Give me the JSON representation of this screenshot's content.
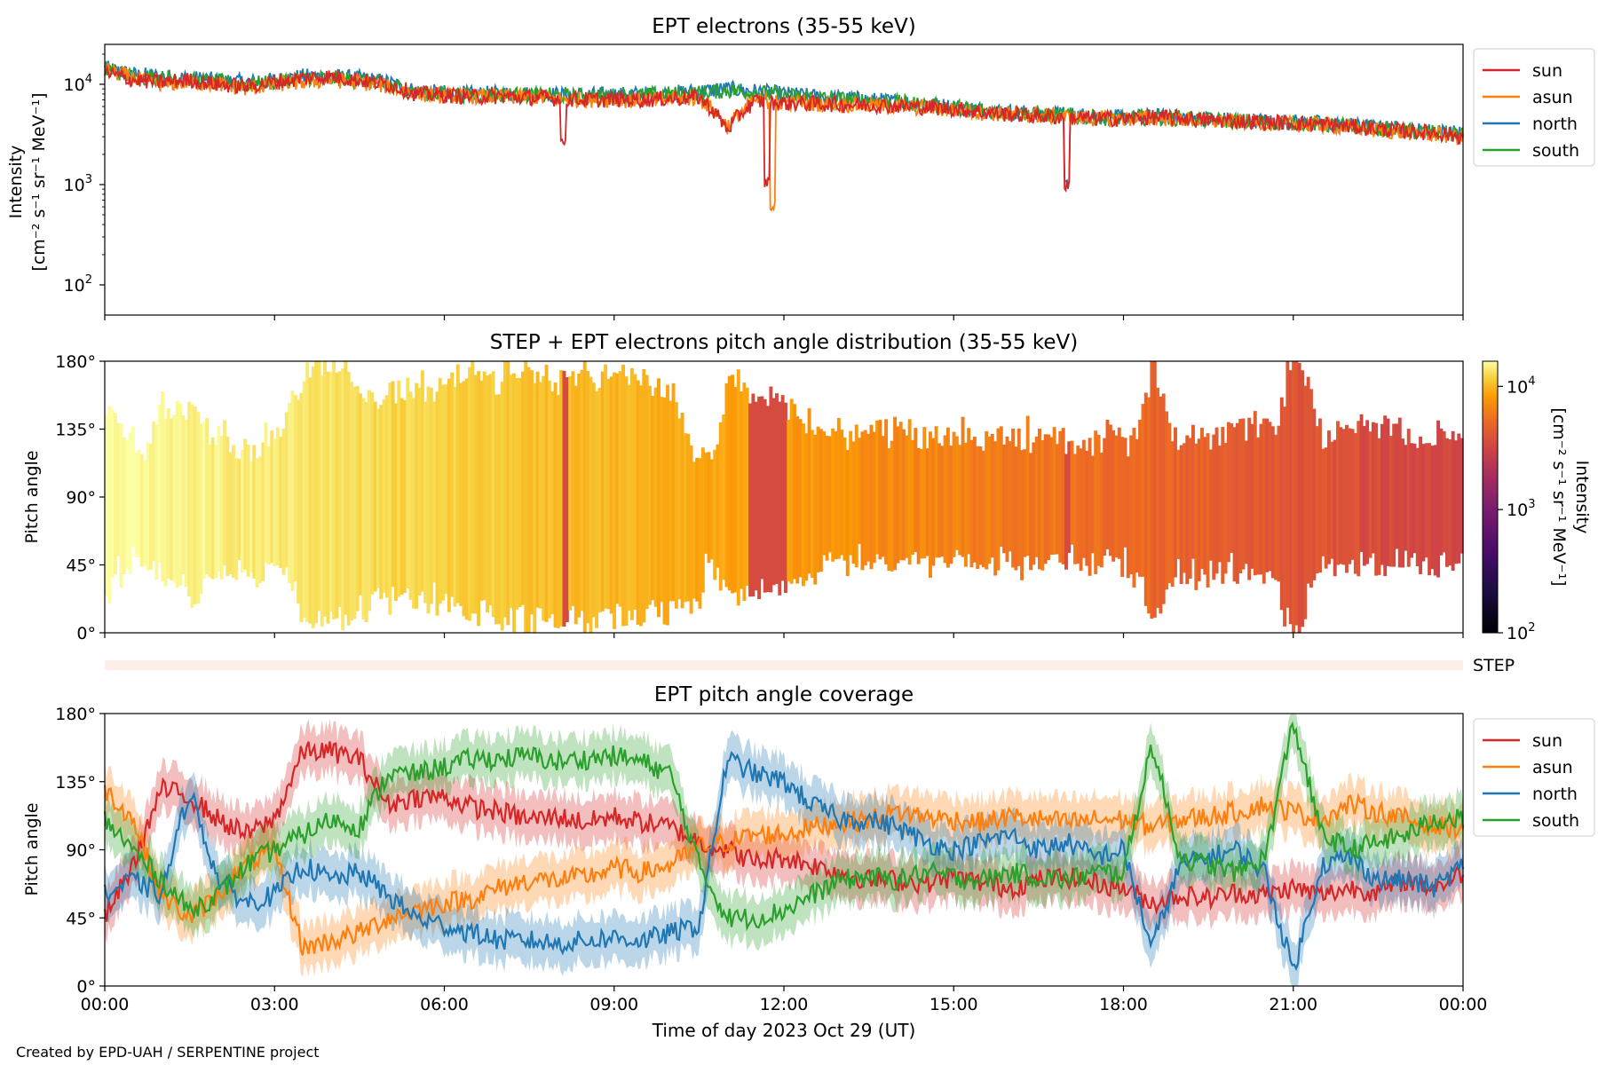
{
  "figure": {
    "credit": "Created by EPD-UAH / SERPENTINE project",
    "xlabel": "Time of day 2023 Oct 29 (UT)",
    "xticks": [
      "00:00",
      "03:00",
      "06:00",
      "09:00",
      "12:00",
      "15:00",
      "18:00",
      "21:00",
      "00:00"
    ]
  },
  "colors": {
    "sun": "#d62728",
    "asun": "#ff7f0e",
    "north": "#1f77b4",
    "south": "#2ca02c",
    "step_band": "#fdeee8"
  },
  "chart_data": [
    {
      "type": "line",
      "title": "EPT electrons (35-55 keV)",
      "ylabel_line1": "Intensity",
      "ylabel_line2": "[cm⁻² s⁻¹ sr⁻¹ MeV⁻¹]",
      "yscale": "log",
      "ylim": [
        50,
        25000
      ],
      "yticks": [
        {
          "value": 100,
          "base": "10",
          "exp": "2"
        },
        {
          "value": 1000,
          "base": "10",
          "exp": "3"
        },
        {
          "value": 10000,
          "base": "10",
          "exp": "4"
        }
      ],
      "xlim_hours": [
        0,
        24
      ],
      "legend": [
        "sun",
        "asun",
        "north",
        "south"
      ],
      "legend_position": "outside-right",
      "x_hours": [
        0,
        0.5,
        1,
        1.5,
        2,
        2.5,
        3,
        3.5,
        4,
        4.5,
        5,
        5.5,
        6,
        6.5,
        7,
        7.5,
        8,
        8.5,
        9,
        9.5,
        10,
        10.5,
        11,
        11.5,
        12,
        12.5,
        13,
        13.5,
        14,
        14.5,
        15,
        15.5,
        16,
        16.5,
        17,
        17.5,
        18,
        18.5,
        19,
        19.5,
        20,
        20.5,
        21,
        21.5,
        22,
        22.5,
        23,
        23.5,
        24
      ],
      "series": [
        {
          "name": "sun",
          "values": [
            13000,
            11000,
            10500,
            11000,
            10000,
            9500,
            10500,
            11500,
            12000,
            11000,
            10000,
            8000,
            7800,
            7500,
            7600,
            7400,
            7200,
            7000,
            7100,
            7000,
            7200,
            7400,
            3500,
            6800,
            6500,
            6400,
            6300,
            6200,
            6100,
            5900,
            5700,
            5300,
            5000,
            4800,
            4700,
            4600,
            4500,
            4700,
            4600,
            4400,
            4300,
            4200,
            4100,
            4000,
            3800,
            3600,
            3400,
            3300,
            3000
          ]
        },
        {
          "name": "asun",
          "values": [
            14000,
            11500,
            10000,
            10500,
            10000,
            9000,
            10000,
            10500,
            11000,
            10500,
            9500,
            8000,
            7700,
            7600,
            7500,
            7400,
            7200,
            7000,
            7000,
            6900,
            7100,
            7300,
            3800,
            6900,
            6600,
            6400,
            6300,
            6200,
            6000,
            5800,
            5600,
            5200,
            5000,
            4900,
            4700,
            4500,
            4500,
            4600,
            4500,
            4300,
            4200,
            4100,
            4000,
            3900,
            3700,
            3500,
            3300,
            3200,
            2900
          ]
        },
        {
          "name": "north",
          "values": [
            14500,
            12500,
            12000,
            11500,
            11000,
            10500,
            11000,
            12000,
            12000,
            11500,
            10500,
            8500,
            8200,
            8000,
            8100,
            8000,
            7900,
            7800,
            7900,
            8000,
            8200,
            8500,
            9000,
            8500,
            8000,
            7600,
            7300,
            7000,
            6700,
            6300,
            6000,
            5600,
            5300,
            5100,
            5000,
            4800,
            4600,
            4800,
            4700,
            4500,
            4400,
            4300,
            4200,
            4100,
            3900,
            3700,
            3500,
            3400,
            3200
          ]
        },
        {
          "name": "south",
          "values": [
            14000,
            12000,
            11500,
            11000,
            10500,
            10000,
            10500,
            11500,
            11500,
            11000,
            10000,
            8200,
            8000,
            7800,
            7900,
            7800,
            7700,
            7600,
            7700,
            7800,
            8000,
            8200,
            8700,
            8300,
            7800,
            7400,
            7100,
            6900,
            6600,
            6200,
            5900,
            5500,
            5200,
            5000,
            4900,
            4700,
            4500,
            4700,
            4600,
            4400,
            4300,
            4200,
            4100,
            4000,
            3800,
            3600,
            3400,
            3300,
            3100
          ]
        }
      ],
      "dips": [
        {
          "series": "asun",
          "x_hours": 11.8,
          "value": 520
        },
        {
          "series": "sun",
          "x_hours": 11.7,
          "value": 900
        },
        {
          "series": "sun",
          "x_hours": 8.1,
          "value": 2300
        },
        {
          "series": "sun",
          "x_hours": 17.0,
          "value": 850
        },
        {
          "series": "north",
          "x_hours": 17.0,
          "value": 900
        }
      ]
    },
    {
      "type": "heatmap",
      "title": "STEP + EPT electrons pitch angle distribution (35-55 keV)",
      "ylabel": "Pitch angle",
      "ylim": [
        0,
        180
      ],
      "yticks": [
        "0°",
        "45°",
        "90°",
        "135°",
        "180°"
      ],
      "xlim_hours": [
        0,
        24
      ],
      "colorbar": {
        "label_line1": "Intensity",
        "label_line2": "[cm⁻² s⁻¹ sr⁻¹ MeV⁻¹]",
        "scale": "log",
        "range": [
          100,
          16000
        ],
        "ticks": [
          {
            "value": 100,
            "base": "10",
            "exp": "2"
          },
          {
            "value": 1000,
            "base": "10",
            "exp": "3"
          },
          {
            "value": 10000,
            "base": "10",
            "exp": "4"
          }
        ]
      },
      "step_label": "STEP"
    },
    {
      "type": "line",
      "title": "EPT pitch angle coverage",
      "ylabel": "Pitch angle",
      "ylim": [
        0,
        180
      ],
      "yticks": [
        "0°",
        "45°",
        "90°",
        "135°",
        "180°"
      ],
      "xlim_hours": [
        0,
        24
      ],
      "legend": [
        "sun",
        "asun",
        "north",
        "south"
      ],
      "legend_position": "outside-right",
      "band_halfwidth_deg": 15,
      "x_hours": [
        0,
        0.5,
        1,
        1.5,
        2,
        2.5,
        3,
        3.5,
        4,
        4.5,
        5,
        5.5,
        6,
        6.5,
        7,
        7.5,
        8,
        8.5,
        9,
        9.5,
        10,
        10.5,
        11,
        11.5,
        12,
        12.5,
        13,
        13.5,
        14,
        14.5,
        15,
        15.5,
        16,
        16.5,
        17,
        17.5,
        18,
        18.5,
        19,
        19.5,
        20,
        20.5,
        21,
        21.5,
        22,
        22.5,
        23,
        23.5,
        24
      ],
      "series": [
        {
          "name": "sun",
          "values": [
            45,
            80,
            130,
            125,
            110,
            100,
            110,
            155,
            155,
            150,
            120,
            125,
            125,
            118,
            115,
            110,
            112,
            108,
            112,
            108,
            105,
            95,
            90,
            82,
            85,
            80,
            75,
            70,
            70,
            68,
            72,
            68,
            65,
            70,
            72,
            68,
            65,
            55,
            60,
            58,
            62,
            60,
            65,
            60,
            65,
            62,
            70,
            65,
            75
          ]
        },
        {
          "name": "asun",
          "values": [
            130,
            110,
            60,
            45,
            60,
            80,
            90,
            25,
            30,
            35,
            45,
            50,
            55,
            58,
            65,
            70,
            70,
            72,
            78,
            75,
            80,
            92,
            95,
            100,
            100,
            105,
            108,
            110,
            115,
            112,
            110,
            108,
            112,
            110,
            108,
            110,
            110,
            105,
            110,
            112,
            115,
            120,
            115,
            110,
            120,
            115,
            110,
            105,
            105
          ]
        },
        {
          "name": "north",
          "values": [
            60,
            70,
            60,
            130,
            70,
            55,
            60,
            80,
            70,
            75,
            60,
            45,
            40,
            35,
            30,
            30,
            28,
            30,
            32,
            30,
            35,
            40,
            150,
            140,
            135,
            120,
            110,
            110,
            105,
            95,
            90,
            95,
            100,
            90,
            95,
            85,
            90,
            25,
            80,
            85,
            90,
            75,
            10,
            80,
            85,
            70,
            70,
            65,
            80
          ]
        },
        {
          "name": "south",
          "values": [
            110,
            90,
            70,
            50,
            60,
            80,
            90,
            100,
            110,
            105,
            140,
            140,
            145,
            150,
            150,
            152,
            148,
            150,
            152,
            148,
            140,
            80,
            45,
            45,
            50,
            60,
            70,
            72,
            70,
            75,
            72,
            70,
            75,
            72,
            70,
            75,
            75,
            160,
            85,
            80,
            75,
            85,
            175,
            100,
            90,
            95,
            100,
            110,
            110
          ]
        }
      ]
    }
  ]
}
